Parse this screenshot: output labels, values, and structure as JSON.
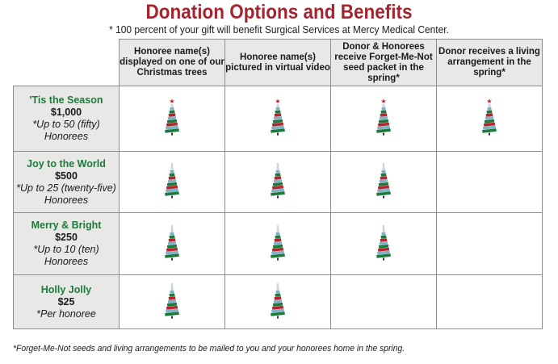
{
  "title": "Donation Options and Benefits",
  "subtitle": "* 100 percent of your gift will benefit Surgical Services at Mercy Medical Center.",
  "colors": {
    "title_red": "#a3242e",
    "tier_green": "#1e7a3a",
    "header_gray": "#e8e8e6"
  },
  "columns": [
    "Honoree name(s) displayed on one of our Christmas trees",
    "Honoree name(s) pictured in virtual video",
    "Donor & Honorees receive Forget-Me-Not seed packet in the spring*",
    "Donor receives a living arrangement in the spring*"
  ],
  "tiers": [
    {
      "name": "'Tis the Season",
      "amount": "$1,000",
      "note": "*Up to 50 (fifty) Honorees",
      "benefits": [
        true,
        true,
        true,
        true
      ]
    },
    {
      "name": "Joy to the World",
      "amount": "$500",
      "note": "*Up to 25 (twenty-five) Honorees",
      "benefits": [
        true,
        true,
        true,
        false
      ]
    },
    {
      "name": "Merry & Bright",
      "amount": "$250",
      "note": "*Up to 10 (ten) Honorees",
      "benefits": [
        true,
        true,
        true,
        false
      ]
    },
    {
      "name": "Holly Jolly",
      "amount": "$25",
      "note": "*Per honoree",
      "benefits": [
        true,
        true,
        false,
        false
      ]
    }
  ],
  "benefit_icon": "christmas-tree-icon",
  "footnote": "*Forget-Me-Not seeds and living arrangements to be mailed to you and your honorees home in the spring."
}
